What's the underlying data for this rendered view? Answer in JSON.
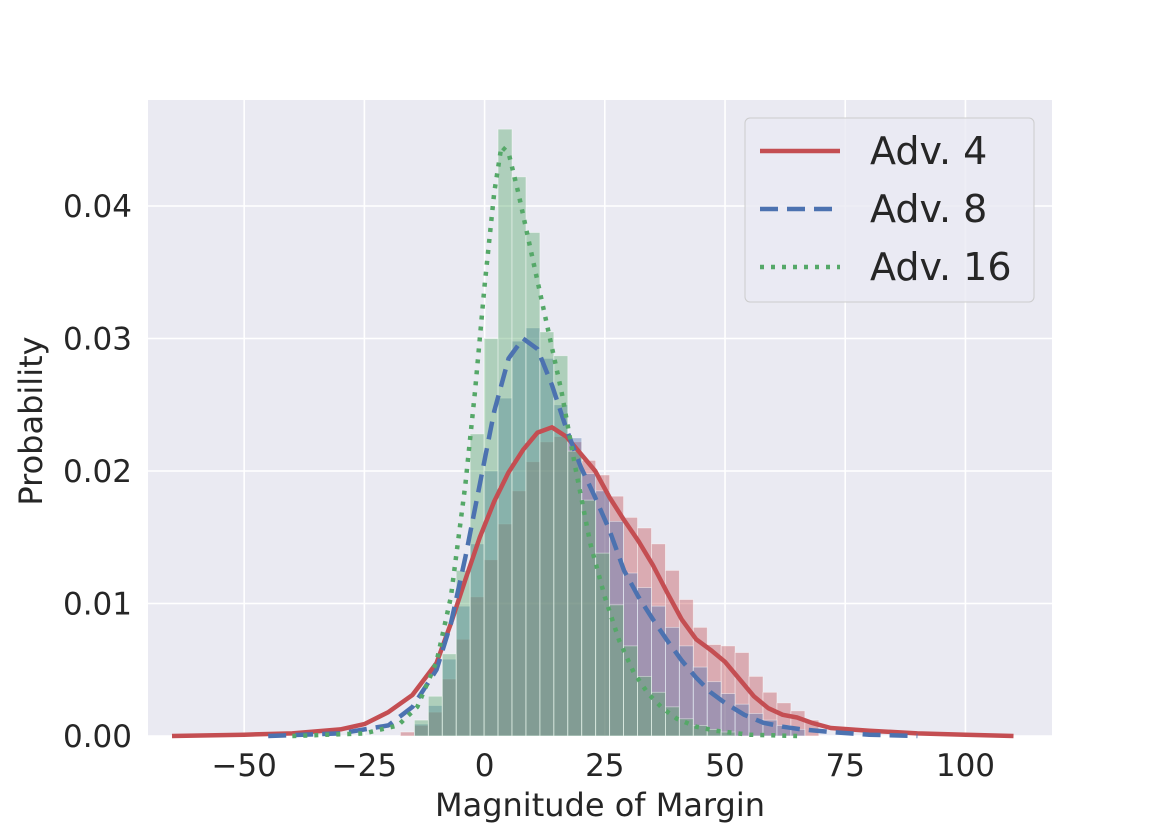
{
  "chart_data": {
    "type": "histogram+kde",
    "title": "",
    "xlabel": "Magnitude of Margin",
    "ylabel": "Probability",
    "xlim": [
      -70,
      118
    ],
    "ylim": [
      0,
      0.048
    ],
    "xticks": [
      -50,
      -25,
      0,
      25,
      50,
      75,
      100
    ],
    "xtick_labels": [
      "−50",
      "−25",
      "0",
      "25",
      "50",
      "75",
      "100"
    ],
    "yticks": [
      0,
      0.01,
      0.02,
      0.03,
      0.04
    ],
    "ytick_labels": [
      "0.00",
      "0.01",
      "0.02",
      "0.03",
      "0.04"
    ],
    "grid": true,
    "legend_position": "top-right",
    "bin_width": 2.9,
    "series": [
      {
        "name": "Adv. 4",
        "color": "#c44e52",
        "line_style": "solid",
        "hist": [
          [
            -17.5,
            0.0003
          ],
          [
            -14.6,
            0.0008
          ],
          [
            -11.7,
            0.0018
          ],
          [
            -8.8,
            0.0043
          ],
          [
            -5.9,
            0.0073
          ],
          [
            -3.0,
            0.0105
          ],
          [
            -0.1,
            0.0133
          ],
          [
            2.8,
            0.016
          ],
          [
            5.7,
            0.0185
          ],
          [
            8.6,
            0.0207
          ],
          [
            11.5,
            0.0222
          ],
          [
            14.4,
            0.0226
          ],
          [
            17.3,
            0.0222
          ],
          [
            20.2,
            0.0208
          ],
          [
            23.1,
            0.0197
          ],
          [
            26.0,
            0.0181
          ],
          [
            28.9,
            0.0165
          ],
          [
            31.8,
            0.0157
          ],
          [
            34.7,
            0.0145
          ],
          [
            37.6,
            0.0125
          ],
          [
            40.5,
            0.0103
          ],
          [
            43.4,
            0.0082
          ],
          [
            46.3,
            0.0069
          ],
          [
            49.2,
            0.0068
          ],
          [
            52.1,
            0.0063
          ],
          [
            55.0,
            0.0045
          ],
          [
            57.9,
            0.0033
          ],
          [
            60.8,
            0.0025
          ],
          [
            63.7,
            0.0019
          ],
          [
            66.6,
            0.0012
          ]
        ],
        "kde": [
          [
            -65,
            0
          ],
          [
            -50,
            0.0001
          ],
          [
            -40,
            0.0002
          ],
          [
            -30,
            0.0005
          ],
          [
            -25,
            0.0009
          ],
          [
            -20,
            0.0018
          ],
          [
            -15,
            0.0031
          ],
          [
            -10,
            0.0055
          ],
          [
            -7,
            0.0085
          ],
          [
            -4,
            0.0118
          ],
          [
            -1,
            0.015
          ],
          [
            2,
            0.0177
          ],
          [
            5,
            0.0199
          ],
          [
            8,
            0.0216
          ],
          [
            11,
            0.0229
          ],
          [
            14,
            0.0233
          ],
          [
            17,
            0.0226
          ],
          [
            20,
            0.0213
          ],
          [
            23,
            0.02
          ],
          [
            26,
            0.018
          ],
          [
            29,
            0.0163
          ],
          [
            32,
            0.0147
          ],
          [
            35,
            0.0129
          ],
          [
            38,
            0.0108
          ],
          [
            41,
            0.0088
          ],
          [
            44,
            0.0073
          ],
          [
            47,
            0.0065
          ],
          [
            50,
            0.0056
          ],
          [
            53,
            0.0043
          ],
          [
            56,
            0.003
          ],
          [
            59,
            0.0021
          ],
          [
            62,
            0.0016
          ],
          [
            65,
            0.0014
          ],
          [
            68,
            0.001
          ],
          [
            72,
            0.0006
          ],
          [
            76,
            0.0005
          ],
          [
            80,
            0.0004
          ],
          [
            90,
            0.0002
          ],
          [
            100,
            0.0001
          ],
          [
            110,
            0
          ]
        ]
      },
      {
        "name": "Adv. 8",
        "color": "#4c72b0",
        "line_style": "dashed",
        "hist": [
          [
            -14.6,
            0.0009
          ],
          [
            -11.7,
            0.0023
          ],
          [
            -8.8,
            0.0058
          ],
          [
            -5.9,
            0.0098
          ],
          [
            -3.0,
            0.0145
          ],
          [
            -0.1,
            0.02
          ],
          [
            2.8,
            0.0255
          ],
          [
            5.7,
            0.0298
          ],
          [
            8.6,
            0.0308
          ],
          [
            11.5,
            0.0285
          ],
          [
            14.4,
            0.025
          ],
          [
            17.3,
            0.0225
          ],
          [
            20.2,
            0.0198
          ],
          [
            23.1,
            0.0185
          ],
          [
            26.0,
            0.0162
          ],
          [
            28.9,
            0.0123
          ],
          [
            31.8,
            0.0112
          ],
          [
            34.7,
            0.0098
          ],
          [
            37.6,
            0.0082
          ],
          [
            40.5,
            0.0068
          ],
          [
            43.4,
            0.0052
          ],
          [
            46.3,
            0.0041
          ],
          [
            49.2,
            0.0032
          ],
          [
            52.1,
            0.0024
          ],
          [
            55.0,
            0.0017
          ],
          [
            57.9,
            0.0012
          ],
          [
            60.8,
            0.0008
          ],
          [
            63.7,
            0.0005
          ]
        ],
        "kde": [
          [
            -45,
            0
          ],
          [
            -30,
            0.0002
          ],
          [
            -20,
            0.0008
          ],
          [
            -15,
            0.0022
          ],
          [
            -10,
            0.005
          ],
          [
            -7,
            0.0085
          ],
          [
            -4,
            0.0135
          ],
          [
            -1,
            0.019
          ],
          [
            2,
            0.0245
          ],
          [
            5,
            0.0285
          ],
          [
            8,
            0.03
          ],
          [
            11,
            0.0292
          ],
          [
            14,
            0.0265
          ],
          [
            17,
            0.0232
          ],
          [
            20,
            0.0203
          ],
          [
            23,
            0.018
          ],
          [
            26,
            0.0155
          ],
          [
            29,
            0.0125
          ],
          [
            32,
            0.0105
          ],
          [
            35,
            0.0088
          ],
          [
            38,
            0.0072
          ],
          [
            41,
            0.0057
          ],
          [
            44,
            0.0044
          ],
          [
            47,
            0.0033
          ],
          [
            50,
            0.0025
          ],
          [
            54,
            0.0016
          ],
          [
            58,
            0.001
          ],
          [
            62,
            0.0007
          ],
          [
            66,
            0.0005
          ],
          [
            72,
            0.0003
          ],
          [
            80,
            0.0001
          ],
          [
            90,
            0
          ]
        ]
      },
      {
        "name": "Adv. 16",
        "color": "#55a868",
        "line_style": "dotted",
        "hist": [
          [
            -14.6,
            0.0012
          ],
          [
            -11.7,
            0.003
          ],
          [
            -8.8,
            0.0062
          ],
          [
            -5.9,
            0.0125
          ],
          [
            -3.0,
            0.0228
          ],
          [
            -0.1,
            0.03
          ],
          [
            2.8,
            0.0458
          ],
          [
            5.7,
            0.0422
          ],
          [
            8.6,
            0.038
          ],
          [
            11.5,
            0.0305
          ],
          [
            14.4,
            0.0287
          ],
          [
            17.3,
            0.0215
          ],
          [
            20.2,
            0.0178
          ],
          [
            23.1,
            0.0138
          ],
          [
            26.0,
            0.0099
          ],
          [
            28.9,
            0.0068
          ],
          [
            31.8,
            0.0045
          ],
          [
            34.7,
            0.0033
          ],
          [
            37.6,
            0.0022
          ],
          [
            40.5,
            0.0013
          ],
          [
            43.4,
            0.0008
          ],
          [
            46.3,
            0.0005
          ],
          [
            49.2,
            0.0003
          ]
        ],
        "kde": [
          [
            -40,
            0
          ],
          [
            -25,
            0.0002
          ],
          [
            -18,
            0.0008
          ],
          [
            -14,
            0.0022
          ],
          [
            -10,
            0.0056
          ],
          [
            -7,
            0.0105
          ],
          [
            -4,
            0.019
          ],
          [
            -2,
            0.026
          ],
          [
            0,
            0.034
          ],
          [
            2,
            0.041
          ],
          [
            3.5,
            0.0445
          ],
          [
            5,
            0.044
          ],
          [
            7,
            0.041
          ],
          [
            10,
            0.036
          ],
          [
            13,
            0.031
          ],
          [
            16,
            0.026
          ],
          [
            19,
            0.02
          ],
          [
            22,
            0.0145
          ],
          [
            25,
            0.0105
          ],
          [
            28,
            0.0072
          ],
          [
            31,
            0.0048
          ],
          [
            34,
            0.0032
          ],
          [
            37,
            0.0021
          ],
          [
            40,
            0.0013
          ],
          [
            44,
            0.0007
          ],
          [
            48,
            0.0004
          ],
          [
            55,
            0.0001
          ],
          [
            65,
            0
          ]
        ]
      }
    ]
  }
}
